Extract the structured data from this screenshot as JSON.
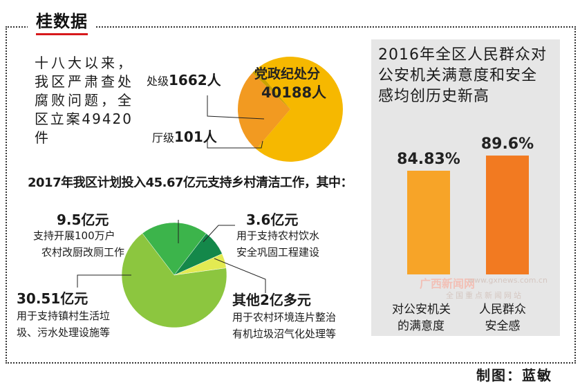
{
  "header": {
    "title": "桂数据"
  },
  "intro_text": "十八大以来，我区严肃查处腐败问题，全区立案49420件",
  "chart_data": [
    {
      "type": "pie",
      "categories": [
        "党政纪处分",
        "处级",
        "厅级"
      ],
      "values": [
        40188,
        1662,
        101
      ],
      "units": "人",
      "labels": {
        "main_name": "党政纪处分",
        "main_value": "40188人",
        "c1_name": "处级",
        "c1_value": "1662人",
        "c2_name": "厅级",
        "c2_value": "101人"
      },
      "colors": [
        "#f6b800",
        "#f29a21",
        "#c9a000"
      ]
    },
    {
      "type": "pie",
      "title": "2017年我区计划投入45.67亿元支持乡村清洁工作，其中：",
      "categories": [
        "30.51亿元",
        "9.5亿元",
        "3.6亿元",
        "其他2亿多元"
      ],
      "values": [
        30.51,
        9.5,
        3.6,
        2.06
      ],
      "descriptions": [
        [
          "用于支持镇村生活垃",
          "圾、污水处理设施等"
        ],
        [
          "支持开展100万户",
          "农村改厨改厕工作"
        ],
        [
          "用于支持农村饮水",
          "安全巩固工程建设"
        ],
        [
          "用于农村环境连片整治",
          "有机垃圾沼气化处理等"
        ]
      ],
      "colors": [
        "#8cc63f",
        "#3cb44b",
        "#14884a",
        "#e3ea52"
      ]
    },
    {
      "type": "bar",
      "title": "2016年全区人民群众对公安机关满意度和安全感均创历史新高",
      "categories": [
        "对公安机关的满意度",
        "人民群众安全感"
      ],
      "category_lines": [
        [
          "对公安机关",
          "的满意度"
        ],
        [
          "人民群众",
          "安全感"
        ]
      ],
      "values": [
        84.83,
        89.6
      ],
      "value_labels": [
        "84.83%",
        "89.6%"
      ],
      "colors": [
        "#f7a428",
        "#f27a21"
      ]
    }
  ],
  "watermark": {
    "brand": "广西新闻网",
    "url": "www.gxnews.com.cn",
    "slogan": "全国重点新闻网站"
  },
  "credit": "制图：蓝敏"
}
